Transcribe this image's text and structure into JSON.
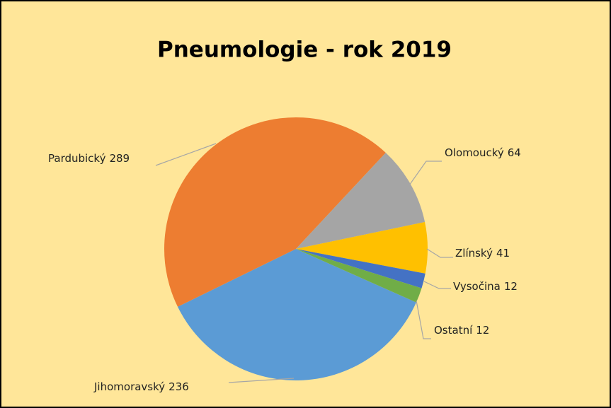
{
  "chart_data": {
    "type": "pie",
    "title": "Pneumologie - rok 2019",
    "categories": [
      "Jihomoravský",
      "Pardubický",
      "Olomoucký",
      "Zlínský",
      "Vysočina",
      "Ostatní"
    ],
    "values": [
      236,
      289,
      64,
      41,
      12,
      12
    ],
    "colors": [
      "#5b9bd5",
      "#ed7d31",
      "#a5a5a5",
      "#ffc000",
      "#4472c4",
      "#70ad47"
    ]
  }
}
